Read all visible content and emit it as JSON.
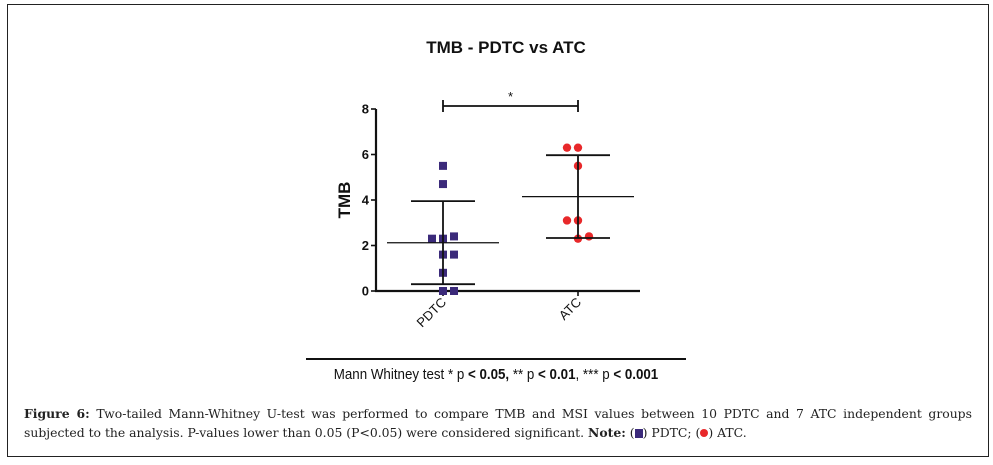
{
  "figure": {
    "label": "Figure 6:",
    "caption_part1": " Two-tailed Mann-Whitney U-test was performed to compare TMB and MSI values between 10 PDTC and 7 ATC independent groups subjected to the analysis. P-values lower than 0.05 (P<0.05) were considered significant. ",
    "note_label": "Note:",
    "note_open1": " (",
    "note_pdtc": ") PDTC; (",
    "note_atc": ") ATC."
  },
  "legend": {
    "prefix": "Mann Whitney test * p ",
    "p1": "< 0.05,",
    "mid1": " ** p ",
    "p2": "< 0.01",
    "mid2": ", *** p ",
    "p3": "< 0.001"
  },
  "chart_data": {
    "type": "scatter",
    "title": "TMB - PDTC vs ATC",
    "xlabel": "",
    "ylabel": "TMB",
    "ylim": [
      0,
      8
    ],
    "yticks": [
      0,
      2,
      4,
      6,
      8
    ],
    "categories": [
      "PDTC",
      "ATC"
    ],
    "grid": false,
    "series": [
      {
        "name": "PDTC",
        "marker": "square",
        "color": "#3b2a7a",
        "values": [
          5.5,
          4.7,
          2.3,
          2.3,
          2.4,
          1.6,
          1.6,
          0.8,
          0.0,
          0.0
        ],
        "offsets": [
          0,
          0,
          -1,
          0,
          1,
          0,
          1,
          0,
          0,
          1
        ],
        "mean": 2.12,
        "sd_upper": 3.95,
        "sd_lower": 0.3
      },
      {
        "name": "ATC",
        "marker": "circle",
        "color": "#e8282a",
        "values": [
          6.3,
          6.3,
          5.5,
          3.1,
          3.1,
          2.3,
          2.4
        ],
        "offsets": [
          -1,
          0,
          0,
          -1,
          0,
          0,
          1
        ],
        "mean": 4.15,
        "sd_upper": 5.97,
        "sd_lower": 2.33
      }
    ],
    "significance": {
      "between": [
        "PDTC",
        "ATC"
      ],
      "label": "*"
    }
  }
}
